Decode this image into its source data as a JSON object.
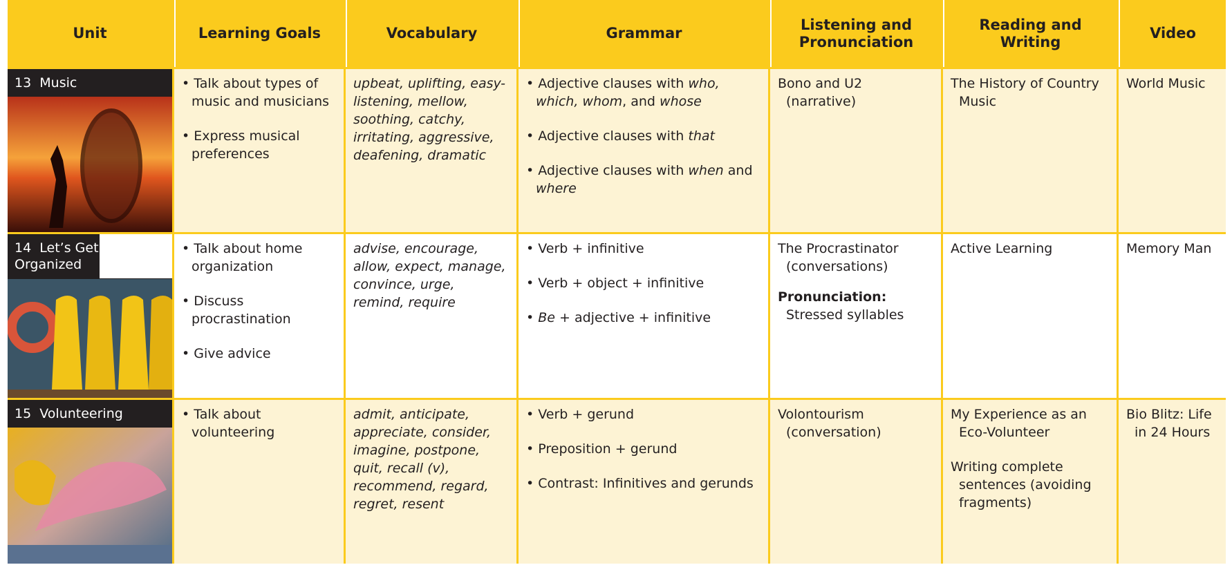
{
  "header": {
    "columns": [
      "Unit",
      "Learning Goals",
      "Vocabulary",
      "Grammar",
      "Listening and Pronunciation",
      "Reading and Writing",
      "Video"
    ]
  },
  "units": [
    {
      "number": "13",
      "title": "Music",
      "goals": [
        "Talk about types of music and musicians",
        "Express musical preferences"
      ],
      "vocabulary": "upbeat, uplifting, easy-listening, mellow, soothing, catchy, irritating, aggressive, deafening, dramatic",
      "grammar": [
        [
          "Adjective clauses with ",
          "who, which, whom",
          ", and ",
          "whose"
        ],
        [
          "Adjective clauses with ",
          "that"
        ],
        [
          "Adjective clauses with ",
          "when",
          " and ",
          "where"
        ]
      ],
      "listening": {
        "title": "Bono and U2",
        "detail": "(narrative)"
      },
      "reading": [
        "The History of Country Music"
      ],
      "video": "World Music"
    },
    {
      "number": "14",
      "title": "Let’s Get Organized",
      "goals": [
        "Talk about home organization",
        "Discuss procrastination",
        "Give advice"
      ],
      "vocabulary": "advise, encourage, allow, expect, manage, convince, urge, remind, require",
      "grammar": [
        [
          "Verb + infinitive"
        ],
        [
          "Verb + object + infinitive"
        ],
        [
          "Be",
          " + adjective + infinitive"
        ]
      ],
      "listening": {
        "title": "The Procrastinator",
        "detail": "(conversations)"
      },
      "pronunciation": {
        "label": "Pronunciation:",
        "text": "Stressed syllables"
      },
      "reading": [
        "Active Learning"
      ],
      "video": "Memory Man"
    },
    {
      "number": "15",
      "title": "Volunteering",
      "goals": [
        "Talk about volunteering"
      ],
      "vocabulary": "admit, anticipate, appreciate, consider, imagine, postpone, quit, recall (v), recommend, regard, regret, resent",
      "grammar": [
        [
          "Verb + gerund"
        ],
        [
          "Preposition + gerund"
        ],
        [
          "Contrast: Infinitives and gerunds"
        ]
      ],
      "listening": {
        "title": "Volontourism",
        "detail": "(conversation)"
      },
      "reading": [
        "My Experience as an Eco-Volunteer",
        "Writing complete sentences (avoiding fragments)"
      ],
      "video": "Bio Blitz: Life in 24 Hours"
    }
  ]
}
